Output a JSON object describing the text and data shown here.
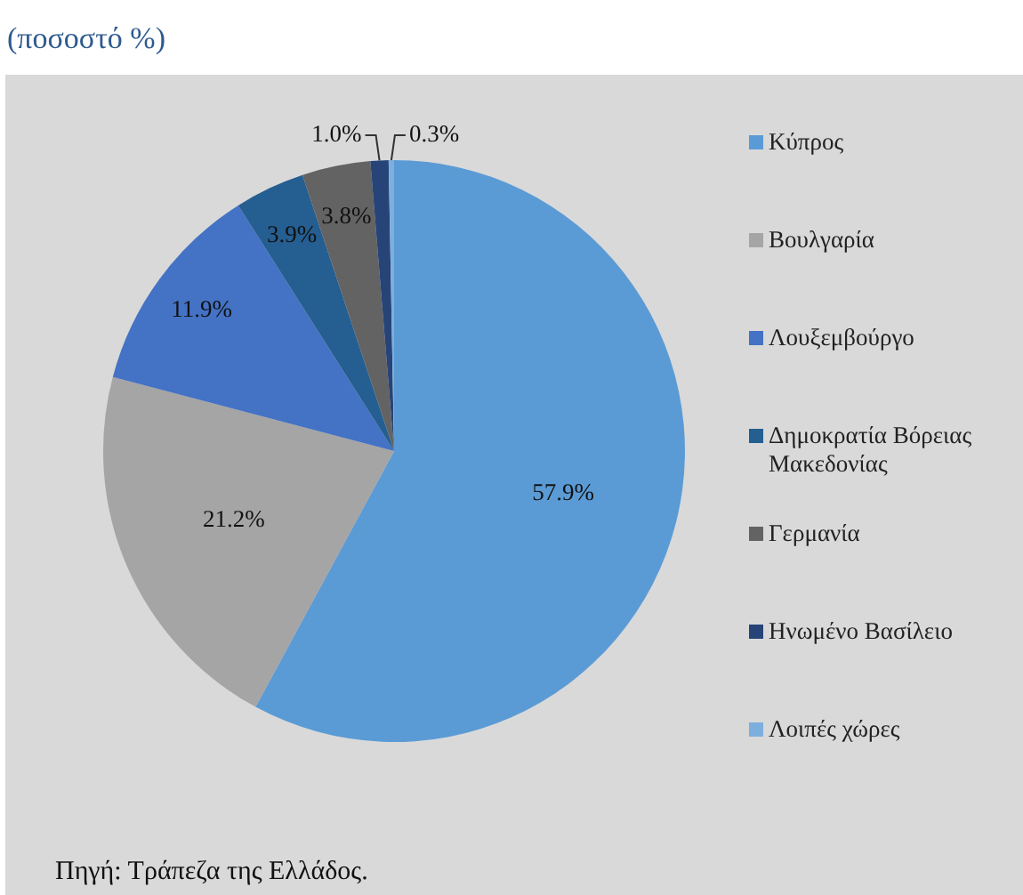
{
  "chart_data": {
    "type": "pie",
    "title": "(ποσοστό %)",
    "categories": [
      "Κύπρος",
      "Βουλγαρία",
      "Λουξεμβούργο",
      "Δημοκρατία Βόρειας Μακεδονίας",
      "Γερμανία",
      "Ηνωμένο Βασίλειο",
      "Λοιπές χώρες"
    ],
    "values": [
      57.9,
      21.2,
      11.9,
      3.9,
      3.8,
      1.0,
      0.3
    ],
    "colors": [
      "#5b9bd5",
      "#a5a5a5",
      "#4472c4",
      "#255e91",
      "#636363",
      "#264478",
      "#7cafdd"
    ],
    "value_labels": [
      "57.9%",
      "21.2%",
      "11.9%",
      "3.9%",
      "3.8%",
      "1.0%",
      "0.3%"
    ],
    "legend": "right",
    "annotations": [
      "Πηγή: Τράπεζα της Ελλάδος."
    ]
  }
}
